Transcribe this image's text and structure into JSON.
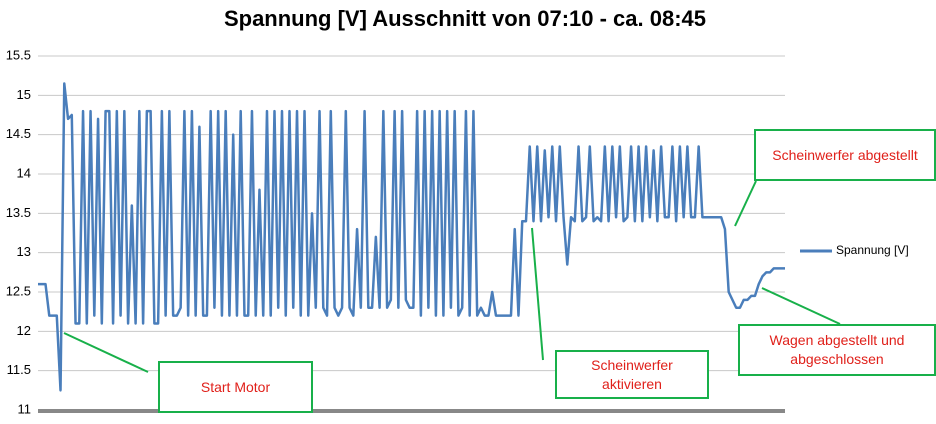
{
  "chart_data": {
    "type": "line",
    "title": "Spannung [V] Ausschnitt von 07:10 - ca. 08:45",
    "ylim": [
      11,
      15.5
    ],
    "yticks": [
      11,
      11.5,
      12,
      12.5,
      13,
      13.5,
      14,
      14.5,
      15,
      15.5
    ],
    "grid": true,
    "legend": "right",
    "series": [
      {
        "name": "Spannung [V]",
        "color": "#4a7ebb",
        "values": [
          12.6,
          12.6,
          12.6,
          12.2,
          12.2,
          12.2,
          11.25,
          15.15,
          14.7,
          14.75,
          12.1,
          12.1,
          14.8,
          12.1,
          14.8,
          12.2,
          14.7,
          12.1,
          14.8,
          14.8,
          12.1,
          14.8,
          12.2,
          14.8,
          12.1,
          13.6,
          12.1,
          14.8,
          12.1,
          14.8,
          14.8,
          12.1,
          12.1,
          14.8,
          12.2,
          14.8,
          12.2,
          12.2,
          12.3,
          14.8,
          12.2,
          14.8,
          12.2,
          14.6,
          12.2,
          12.2,
          14.8,
          12.3,
          14.8,
          12.2,
          14.8,
          12.2,
          14.5,
          12.2,
          14.8,
          12.2,
          12.2,
          14.8,
          12.2,
          13.8,
          12.2,
          14.8,
          12.2,
          14.8,
          12.3,
          14.8,
          12.2,
          14.8,
          12.3,
          14.8,
          12.2,
          14.8,
          12.2,
          13.5,
          12.3,
          14.8,
          12.3,
          12.2,
          14.8,
          12.3,
          12.2,
          12.3,
          14.8,
          12.3,
          12.2,
          13.3,
          12.3,
          14.8,
          12.3,
          12.3,
          13.2,
          12.3,
          14.8,
          12.3,
          12.4,
          14.8,
          12.3,
          14.8,
          12.4,
          12.3,
          12.3,
          14.8,
          12.2,
          14.8,
          12.3,
          14.8,
          12.2,
          14.8,
          12.2,
          14.8,
          12.3,
          14.8,
          12.2,
          12.3,
          14.8,
          12.2,
          14.8,
          12.2,
          12.3,
          12.2,
          12.2,
          12.5,
          12.2,
          12.2,
          12.2,
          12.2,
          12.2,
          13.3,
          12.2,
          13.4,
          13.4,
          14.35,
          13.4,
          14.35,
          13.4,
          14.3,
          13.45,
          14.35,
          13.4,
          14.35,
          13.45,
          12.85,
          13.45,
          13.4,
          14.35,
          13.4,
          13.45,
          14.35,
          13.4,
          13.45,
          13.4,
          14.35,
          13.4,
          14.35,
          13.45,
          14.35,
          13.4,
          13.45,
          14.35,
          13.4,
          14.35,
          13.4,
          14.35,
          13.45,
          14.3,
          13.4,
          14.35,
          13.45,
          13.45,
          14.35,
          13.4,
          14.35,
          13.45,
          14.35,
          13.45,
          13.45,
          14.35,
          13.45,
          13.45,
          13.45,
          13.45,
          13.45,
          13.45,
          13.3,
          12.5,
          12.4,
          12.3,
          12.3,
          12.4,
          12.4,
          12.45,
          12.45,
          12.6,
          12.7,
          12.75,
          12.75,
          12.8,
          12.8,
          12.8,
          12.8
        ]
      }
    ],
    "annotations": [
      "Start Motor",
      "Scheinwerfer aktivieren",
      "Scheinwerfer abgestellt",
      "Wagen abgestellt und abgeschlossen"
    ]
  }
}
